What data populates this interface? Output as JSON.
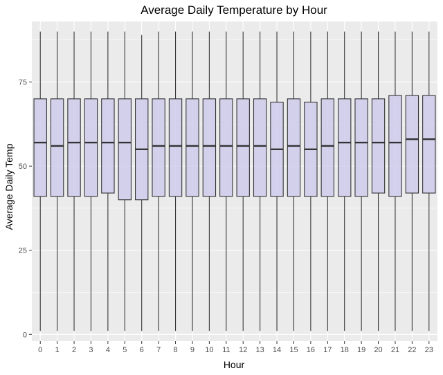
{
  "chart_data": {
    "type": "boxplot",
    "title": "Average Daily Temperature by Hour",
    "xlabel": "Hour",
    "ylabel": "Average Daily Temp",
    "categories": [
      "0",
      "1",
      "2",
      "3",
      "4",
      "5",
      "6",
      "7",
      "8",
      "9",
      "10",
      "11",
      "12",
      "13",
      "14",
      "15",
      "16",
      "17",
      "18",
      "19",
      "20",
      "21",
      "22",
      "23"
    ],
    "yticks": [
      0,
      25,
      50,
      75
    ],
    "ylim": [
      -2,
      93
    ],
    "grid": true,
    "legend": "none",
    "series": [
      {
        "stats": [
          {
            "min": 1,
            "q1": 41,
            "median": 57,
            "q3": 70,
            "max": 90
          },
          {
            "min": 1,
            "q1": 41,
            "median": 56,
            "q3": 70,
            "max": 90
          },
          {
            "min": 1,
            "q1": 41,
            "median": 57,
            "q3": 70,
            "max": 90
          },
          {
            "min": 1,
            "q1": 41,
            "median": 57,
            "q3": 70,
            "max": 90
          },
          {
            "min": 1,
            "q1": 42,
            "median": 57,
            "q3": 70,
            "max": 90
          },
          {
            "min": 1,
            "q1": 40,
            "median": 57,
            "q3": 70,
            "max": 90
          },
          {
            "min": 1,
            "q1": 40,
            "median": 55,
            "q3": 70,
            "max": 89
          },
          {
            "min": 1,
            "q1": 41,
            "median": 56,
            "q3": 70,
            "max": 90
          },
          {
            "min": 1,
            "q1": 41,
            "median": 56,
            "q3": 70,
            "max": 90
          },
          {
            "min": 1,
            "q1": 41,
            "median": 56,
            "q3": 70,
            "max": 90
          },
          {
            "min": 1,
            "q1": 41,
            "median": 56,
            "q3": 70,
            "max": 90
          },
          {
            "min": 1,
            "q1": 41,
            "median": 56,
            "q3": 70,
            "max": 90
          },
          {
            "min": 1,
            "q1": 41,
            "median": 56,
            "q3": 70,
            "max": 90
          },
          {
            "min": 1,
            "q1": 41,
            "median": 56,
            "q3": 70,
            "max": 90
          },
          {
            "min": 1,
            "q1": 41,
            "median": 55,
            "q3": 69,
            "max": 90
          },
          {
            "min": 1,
            "q1": 41,
            "median": 56,
            "q3": 70,
            "max": 90
          },
          {
            "min": 1,
            "q1": 41,
            "median": 55,
            "q3": 69,
            "max": 90
          },
          {
            "min": 1,
            "q1": 41,
            "median": 56,
            "q3": 70,
            "max": 90
          },
          {
            "min": 1,
            "q1": 41,
            "median": 57,
            "q3": 70,
            "max": 90
          },
          {
            "min": 1,
            "q1": 41,
            "median": 57,
            "q3": 70,
            "max": 90
          },
          {
            "min": 1,
            "q1": 42,
            "median": 57,
            "q3": 70,
            "max": 90
          },
          {
            "min": 1,
            "q1": 41,
            "median": 57,
            "q3": 71,
            "max": 90
          },
          {
            "min": 1,
            "q1": 42,
            "median": 58,
            "q3": 71,
            "max": 90
          },
          {
            "min": 1,
            "q1": 42,
            "median": 58,
            "q3": 71,
            "max": 90
          }
        ]
      }
    ],
    "colors": {
      "panel": "#ebebeb",
      "grid": "#ffffff",
      "box_fill": "#cfcbec",
      "box_stroke": "#333333",
      "tick": "#333333"
    }
  }
}
